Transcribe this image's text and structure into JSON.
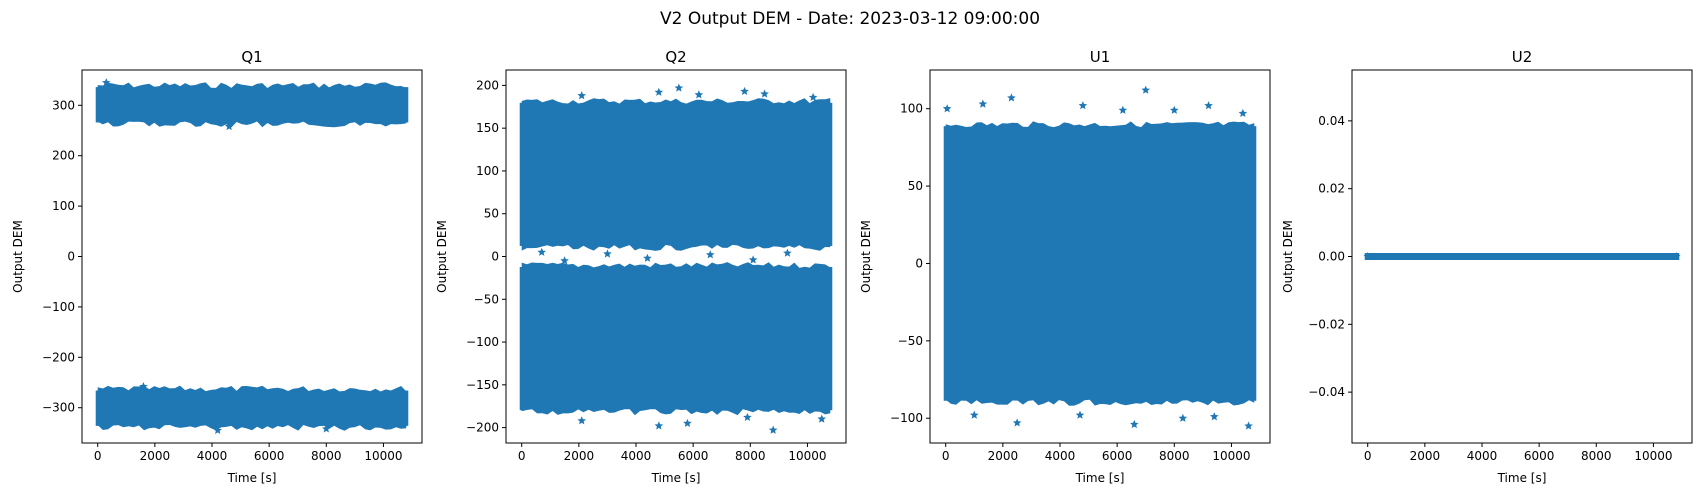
{
  "figure_title": "V2 Output DEM - Date: 2023-03-12 09:00:00",
  "colors": {
    "series": "#1f77b4",
    "axes": "#000000",
    "background": "#ffffff"
  },
  "chart_data": [
    {
      "type": "scatter",
      "title": "Q1",
      "xlabel": "Time [s]",
      "ylabel": "Output DEM",
      "marker": "star",
      "xlim": [
        -550,
        11350
      ],
      "ylim": [
        -370,
        370
      ],
      "xticks": [
        0,
        2000,
        4000,
        6000,
        8000,
        10000
      ],
      "xtick_labels": [
        "0",
        "2000",
        "4000",
        "6000",
        "8000",
        "10000"
      ],
      "yticks": [
        -300,
        -200,
        -100,
        0,
        100,
        200,
        300
      ],
      "ytick_labels": [
        "−300",
        "−200",
        "−100",
        "0",
        "100",
        "200",
        "300"
      ],
      "bands": [
        {
          "x_start": 0,
          "x_end": 10800,
          "y_low": 262,
          "y_high": 340
        },
        {
          "x_start": 0,
          "x_end": 10800,
          "y_low": -340,
          "y_high": -262
        }
      ],
      "outliers": [
        {
          "x": 300,
          "y": 345
        },
        {
          "x": 4600,
          "y": 258
        },
        {
          "x": 1600,
          "y": -258
        },
        {
          "x": 4200,
          "y": -345
        },
        {
          "x": 8000,
          "y": -342
        }
      ]
    },
    {
      "type": "scatter",
      "title": "Q2",
      "xlabel": "Time [s]",
      "ylabel": "Output DEM",
      "marker": "star",
      "xlim": [
        -550,
        11350
      ],
      "ylim": [
        -218,
        218
      ],
      "xticks": [
        0,
        2000,
        4000,
        6000,
        8000,
        10000
      ],
      "xtick_labels": [
        "0",
        "2000",
        "4000",
        "6000",
        "8000",
        "10000"
      ],
      "yticks": [
        -200,
        -150,
        -100,
        -50,
        0,
        50,
        100,
        150,
        200
      ],
      "ytick_labels": [
        "−200",
        "−150",
        "−100",
        "−50",
        "0",
        "50",
        "100",
        "150",
        "200"
      ],
      "bands": [
        {
          "x_start": 0,
          "x_end": 10800,
          "y_low": 10,
          "y_high": 182
        },
        {
          "x_start": 0,
          "x_end": 10800,
          "y_low": -182,
          "y_high": -10
        }
      ],
      "outliers": [
        {
          "x": 5500,
          "y": 197
        },
        {
          "x": 4800,
          "y": 192
        },
        {
          "x": 7800,
          "y": 193
        },
        {
          "x": 8500,
          "y": 190
        },
        {
          "x": 2100,
          "y": 188
        },
        {
          "x": 6200,
          "y": 189
        },
        {
          "x": 10200,
          "y": 186
        },
        {
          "x": 700,
          "y": 5
        },
        {
          "x": 3000,
          "y": 3
        },
        {
          "x": 6600,
          "y": 2
        },
        {
          "x": 9300,
          "y": 4
        },
        {
          "x": 1500,
          "y": -5
        },
        {
          "x": 4400,
          "y": -2
        },
        {
          "x": 8100,
          "y": -4
        },
        {
          "x": 4800,
          "y": -198
        },
        {
          "x": 5800,
          "y": -195
        },
        {
          "x": 8800,
          "y": -203
        },
        {
          "x": 2100,
          "y": -192
        },
        {
          "x": 10500,
          "y": -190
        },
        {
          "x": 7900,
          "y": -188
        }
      ]
    },
    {
      "type": "scatter",
      "title": "U1",
      "xlabel": "Time [s]",
      "ylabel": "Output DEM",
      "marker": "star",
      "xlim": [
        -550,
        11350
      ],
      "ylim": [
        -116,
        125
      ],
      "xticks": [
        0,
        2000,
        4000,
        6000,
        8000,
        10000
      ],
      "xtick_labels": [
        "0",
        "2000",
        "4000",
        "6000",
        "8000",
        "10000"
      ],
      "yticks": [
        -100,
        -50,
        0,
        50,
        100
      ],
      "ytick_labels": [
        "−100",
        "−50",
        "0",
        "50",
        "100"
      ],
      "bands": [
        {
          "x_start": 0,
          "x_end": 10800,
          "y_low": -90,
          "y_high": 90
        }
      ],
      "outliers": [
        {
          "x": 7000,
          "y": 112
        },
        {
          "x": 2300,
          "y": 107
        },
        {
          "x": 1300,
          "y": 103
        },
        {
          "x": 50,
          "y": 100
        },
        {
          "x": 4800,
          "y": 102
        },
        {
          "x": 9200,
          "y": 102
        },
        {
          "x": 6200,
          "y": 99
        },
        {
          "x": 8000,
          "y": 99
        },
        {
          "x": 10400,
          "y": 97
        },
        {
          "x": 2500,
          "y": -103
        },
        {
          "x": 1000,
          "y": -98
        },
        {
          "x": 6600,
          "y": -104
        },
        {
          "x": 8300,
          "y": -100
        },
        {
          "x": 10600,
          "y": -105
        },
        {
          "x": 4700,
          "y": -98
        },
        {
          "x": 9400,
          "y": -99
        }
      ]
    },
    {
      "type": "scatter",
      "title": "U2",
      "xlabel": "Time [s]",
      "ylabel": "Output DEM",
      "marker": "star",
      "xlim": [
        -550,
        11350
      ],
      "ylim": [
        -0.055,
        0.055
      ],
      "xticks": [
        0,
        2000,
        4000,
        6000,
        8000,
        10000
      ],
      "xtick_labels": [
        "0",
        "2000",
        "4000",
        "6000",
        "8000",
        "10000"
      ],
      "yticks": [
        -0.04,
        -0.02,
        0.0,
        0.02,
        0.04
      ],
      "ytick_labels": [
        "−0.04",
        "−0.02",
        "0.00",
        "0.02",
        "0.04"
      ],
      "bands": [
        {
          "x_start": 0,
          "x_end": 10800,
          "y_low": 0,
          "y_high": 0
        }
      ],
      "outliers": []
    }
  ]
}
